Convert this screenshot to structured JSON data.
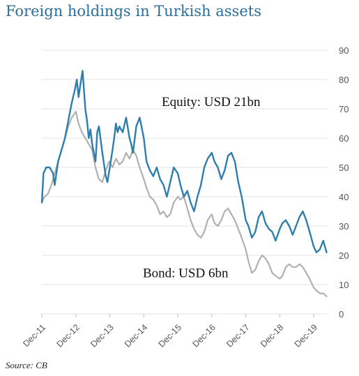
{
  "chart_data": {
    "type": "line",
    "title": "Foreign holdings in Turkish assets",
    "source": "Source: CB",
    "ylim": [
      0,
      90
    ],
    "yticks": [
      0,
      10,
      20,
      30,
      40,
      50,
      60,
      70,
      80,
      90
    ],
    "xlim": [
      2011.92,
      2020.33
    ],
    "xticks": [
      {
        "label": "Dec-11",
        "x": 2011.92
      },
      {
        "label": "Dec-12",
        "x": 2012.92
      },
      {
        "label": "Dec-13",
        "x": 2013.92
      },
      {
        "label": "Dec-14",
        "x": 2014.92
      },
      {
        "label": "Dec-15",
        "x": 2015.92
      },
      {
        "label": "Dec-16",
        "x": 2016.92
      },
      {
        "label": "Dec-17",
        "x": 2017.92
      },
      {
        "label": "Dec-18",
        "x": 2018.92
      },
      {
        "label": "Dec-19",
        "x": 2019.92
      }
    ],
    "grid": true,
    "y_axis_side": "right",
    "series": [
      {
        "key": "bond",
        "color": "#b0b0b0",
        "points": [
          [
            2011.92,
            38
          ],
          [
            2012.0,
            40
          ],
          [
            2012.1,
            41
          ],
          [
            2012.2,
            44
          ],
          [
            2012.3,
            48
          ],
          [
            2012.4,
            52
          ],
          [
            2012.5,
            56
          ],
          [
            2012.6,
            60
          ],
          [
            2012.7,
            64
          ],
          [
            2012.8,
            67
          ],
          [
            2012.92,
            69
          ],
          [
            2013.0,
            65
          ],
          [
            2013.1,
            62
          ],
          [
            2013.2,
            60
          ],
          [
            2013.3,
            58
          ],
          [
            2013.4,
            56
          ],
          [
            2013.5,
            50
          ],
          [
            2013.6,
            46
          ],
          [
            2013.7,
            45
          ],
          [
            2013.8,
            49
          ],
          [
            2013.9,
            52
          ],
          [
            2014.0,
            50
          ],
          [
            2014.1,
            53
          ],
          [
            2014.2,
            51
          ],
          [
            2014.3,
            52
          ],
          [
            2014.4,
            55
          ],
          [
            2014.5,
            53
          ],
          [
            2014.6,
            56
          ],
          [
            2014.7,
            54
          ],
          [
            2014.8,
            50
          ],
          [
            2014.92,
            46
          ],
          [
            2015.0,
            43
          ],
          [
            2015.1,
            40
          ],
          [
            2015.2,
            39
          ],
          [
            2015.3,
            37
          ],
          [
            2015.4,
            34
          ],
          [
            2015.5,
            35
          ],
          [
            2015.6,
            33
          ],
          [
            2015.7,
            34
          ],
          [
            2015.8,
            38
          ],
          [
            2015.92,
            40
          ],
          [
            2016.0,
            39
          ],
          [
            2016.1,
            40
          ],
          [
            2016.2,
            36
          ],
          [
            2016.3,
            32
          ],
          [
            2016.4,
            29
          ],
          [
            2016.5,
            27
          ],
          [
            2016.6,
            26
          ],
          [
            2016.7,
            28
          ],
          [
            2016.8,
            32
          ],
          [
            2016.92,
            34
          ],
          [
            2017.0,
            31
          ],
          [
            2017.1,
            30
          ],
          [
            2017.2,
            32
          ],
          [
            2017.3,
            35
          ],
          [
            2017.4,
            36
          ],
          [
            2017.5,
            34
          ],
          [
            2017.6,
            32
          ],
          [
            2017.7,
            29
          ],
          [
            2017.8,
            26
          ],
          [
            2017.92,
            22
          ],
          [
            2018.0,
            18
          ],
          [
            2018.1,
            14
          ],
          [
            2018.2,
            15
          ],
          [
            2018.3,
            18
          ],
          [
            2018.4,
            20
          ],
          [
            2018.5,
            19
          ],
          [
            2018.6,
            17
          ],
          [
            2018.7,
            14
          ],
          [
            2018.8,
            13
          ],
          [
            2018.92,
            12
          ],
          [
            2019.0,
            13
          ],
          [
            2019.1,
            16
          ],
          [
            2019.2,
            17
          ],
          [
            2019.3,
            16
          ],
          [
            2019.4,
            16
          ],
          [
            2019.5,
            17
          ],
          [
            2019.6,
            16
          ],
          [
            2019.7,
            14
          ],
          [
            2019.8,
            12
          ],
          [
            2019.92,
            9
          ],
          [
            2020.0,
            8
          ],
          [
            2020.1,
            7
          ],
          [
            2020.2,
            7
          ],
          [
            2020.3,
            6
          ]
        ]
      },
      {
        "key": "equity",
        "color": "#2d7eab",
        "points": [
          [
            2011.92,
            38
          ],
          [
            2011.97,
            48
          ],
          [
            2012.05,
            50
          ],
          [
            2012.15,
            50
          ],
          [
            2012.25,
            48
          ],
          [
            2012.3,
            44
          ],
          [
            2012.4,
            52
          ],
          [
            2012.5,
            56
          ],
          [
            2012.6,
            60
          ],
          [
            2012.7,
            66
          ],
          [
            2012.8,
            72
          ],
          [
            2012.9,
            77
          ],
          [
            2012.95,
            80
          ],
          [
            2013.0,
            74
          ],
          [
            2013.05,
            78
          ],
          [
            2013.12,
            83
          ],
          [
            2013.2,
            70
          ],
          [
            2013.25,
            66
          ],
          [
            2013.3,
            60
          ],
          [
            2013.35,
            63
          ],
          [
            2013.4,
            58
          ],
          [
            2013.5,
            52
          ],
          [
            2013.55,
            62
          ],
          [
            2013.6,
            64
          ],
          [
            2013.7,
            55
          ],
          [
            2013.8,
            47
          ],
          [
            2013.85,
            45
          ],
          [
            2013.92,
            50
          ],
          [
            2014.0,
            56
          ],
          [
            2014.05,
            60
          ],
          [
            2014.1,
            65
          ],
          [
            2014.15,
            62
          ],
          [
            2014.2,
            64
          ],
          [
            2014.3,
            62
          ],
          [
            2014.4,
            67
          ],
          [
            2014.5,
            60
          ],
          [
            2014.55,
            58
          ],
          [
            2014.6,
            55
          ],
          [
            2014.7,
            64
          ],
          [
            2014.8,
            67
          ],
          [
            2014.92,
            60
          ],
          [
            2015.0,
            52
          ],
          [
            2015.1,
            49
          ],
          [
            2015.2,
            47
          ],
          [
            2015.3,
            50
          ],
          [
            2015.4,
            46
          ],
          [
            2015.5,
            44
          ],
          [
            2015.6,
            40
          ],
          [
            2015.7,
            45
          ],
          [
            2015.8,
            50
          ],
          [
            2015.92,
            48
          ],
          [
            2016.0,
            44
          ],
          [
            2016.1,
            40
          ],
          [
            2016.2,
            42
          ],
          [
            2016.3,
            38
          ],
          [
            2016.4,
            35
          ],
          [
            2016.5,
            40
          ],
          [
            2016.6,
            44
          ],
          [
            2016.7,
            50
          ],
          [
            2016.8,
            53
          ],
          [
            2016.92,
            55
          ],
          [
            2017.0,
            52
          ],
          [
            2017.1,
            50
          ],
          [
            2017.2,
            46
          ],
          [
            2017.3,
            49
          ],
          [
            2017.4,
            54
          ],
          [
            2017.5,
            55
          ],
          [
            2017.6,
            52
          ],
          [
            2017.7,
            45
          ],
          [
            2017.8,
            40
          ],
          [
            2017.92,
            32
          ],
          [
            2018.0,
            30
          ],
          [
            2018.1,
            26
          ],
          [
            2018.2,
            28
          ],
          [
            2018.3,
            33
          ],
          [
            2018.4,
            35
          ],
          [
            2018.5,
            31
          ],
          [
            2018.6,
            29
          ],
          [
            2018.7,
            28
          ],
          [
            2018.8,
            25
          ],
          [
            2018.92,
            29
          ],
          [
            2019.0,
            31
          ],
          [
            2019.1,
            32
          ],
          [
            2019.2,
            30
          ],
          [
            2019.3,
            27
          ],
          [
            2019.4,
            30
          ],
          [
            2019.5,
            33
          ],
          [
            2019.6,
            35
          ],
          [
            2019.7,
            32
          ],
          [
            2019.8,
            28
          ],
          [
            2019.92,
            23
          ],
          [
            2020.0,
            21
          ],
          [
            2020.1,
            22
          ],
          [
            2020.2,
            25
          ],
          [
            2020.3,
            21
          ]
        ]
      }
    ],
    "annotations": [
      {
        "key": "equity",
        "text": "Equity: USD 21bn",
        "x": 2016.9,
        "y": 71
      },
      {
        "key": "bond",
        "text": "Bond: USD 6bn",
        "x": 2016.15,
        "y": 12.5
      }
    ]
  }
}
